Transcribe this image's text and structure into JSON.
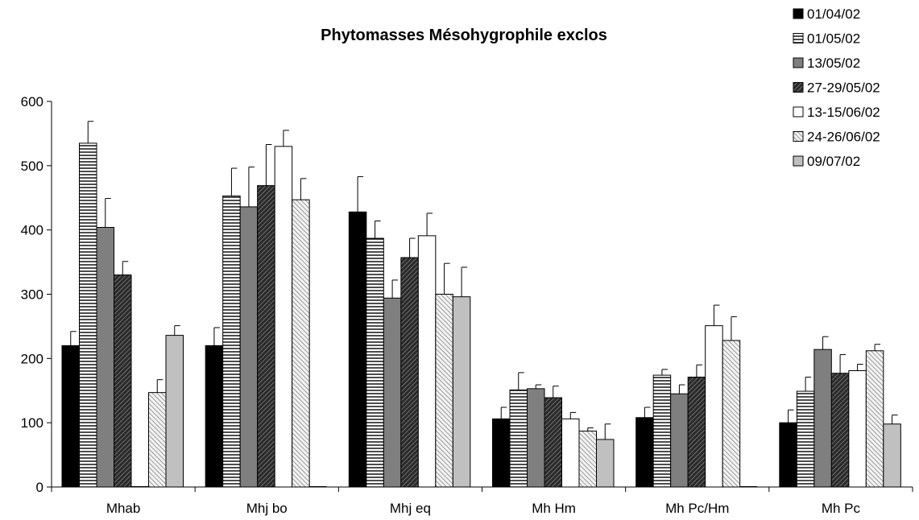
{
  "chart_data": {
    "type": "bar",
    "title": "Phytomasses Mésohygrophile exclos",
    "xlabel": "",
    "ylabel": "",
    "ylim": [
      0,
      600
    ],
    "yticks": [
      0,
      100,
      200,
      300,
      400,
      500,
      600
    ],
    "grid": false,
    "legend_position": "top-right",
    "categories": [
      "Mhab",
      "Mhj bo",
      "Mhj eq",
      "Mh Hm",
      "Mh Pc/Hm",
      "Mh Pc"
    ],
    "series": [
      {
        "name": "01/04/02",
        "pattern": "solid-black",
        "values": [
          220,
          220,
          428,
          106,
          108,
          100
        ],
        "errors": [
          22,
          28,
          55,
          18,
          16,
          20
        ]
      },
      {
        "name": "01/05/02",
        "pattern": "horizontal-lines",
        "values": [
          535,
          453,
          387,
          151,
          174,
          149
        ],
        "errors": [
          34,
          43,
          27,
          27,
          9,
          22
        ]
      },
      {
        "name": "13/05/02",
        "pattern": "solid-gray",
        "values": [
          404,
          436,
          294,
          153,
          145,
          214
        ],
        "errors": [
          45,
          62,
          28,
          6,
          14,
          20
        ]
      },
      {
        "name": "27-29/05/02",
        "pattern": "diagonal-dark",
        "values": [
          330,
          469,
          357,
          139,
          171,
          177
        ],
        "errors": [
          21,
          64,
          30,
          18,
          19,
          29
        ]
      },
      {
        "name": "13-15/06/02",
        "pattern": "white",
        "values": [
          0,
          530,
          391,
          106,
          251,
          181
        ],
        "errors": [
          0,
          25,
          35,
          10,
          32,
          10
        ]
      },
      {
        "name": "24-26/06/02",
        "pattern": "diagonal-light",
        "values": [
          147,
          447,
          300,
          87,
          228,
          212
        ],
        "errors": [
          20,
          33,
          48,
          5,
          37,
          10
        ]
      },
      {
        "name": "09/07/02",
        "pattern": "solid-light-gray",
        "values": [
          236,
          0,
          296,
          74,
          0,
          98
        ],
        "errors": [
          15,
          0,
          46,
          24,
          0,
          14
        ]
      }
    ]
  }
}
